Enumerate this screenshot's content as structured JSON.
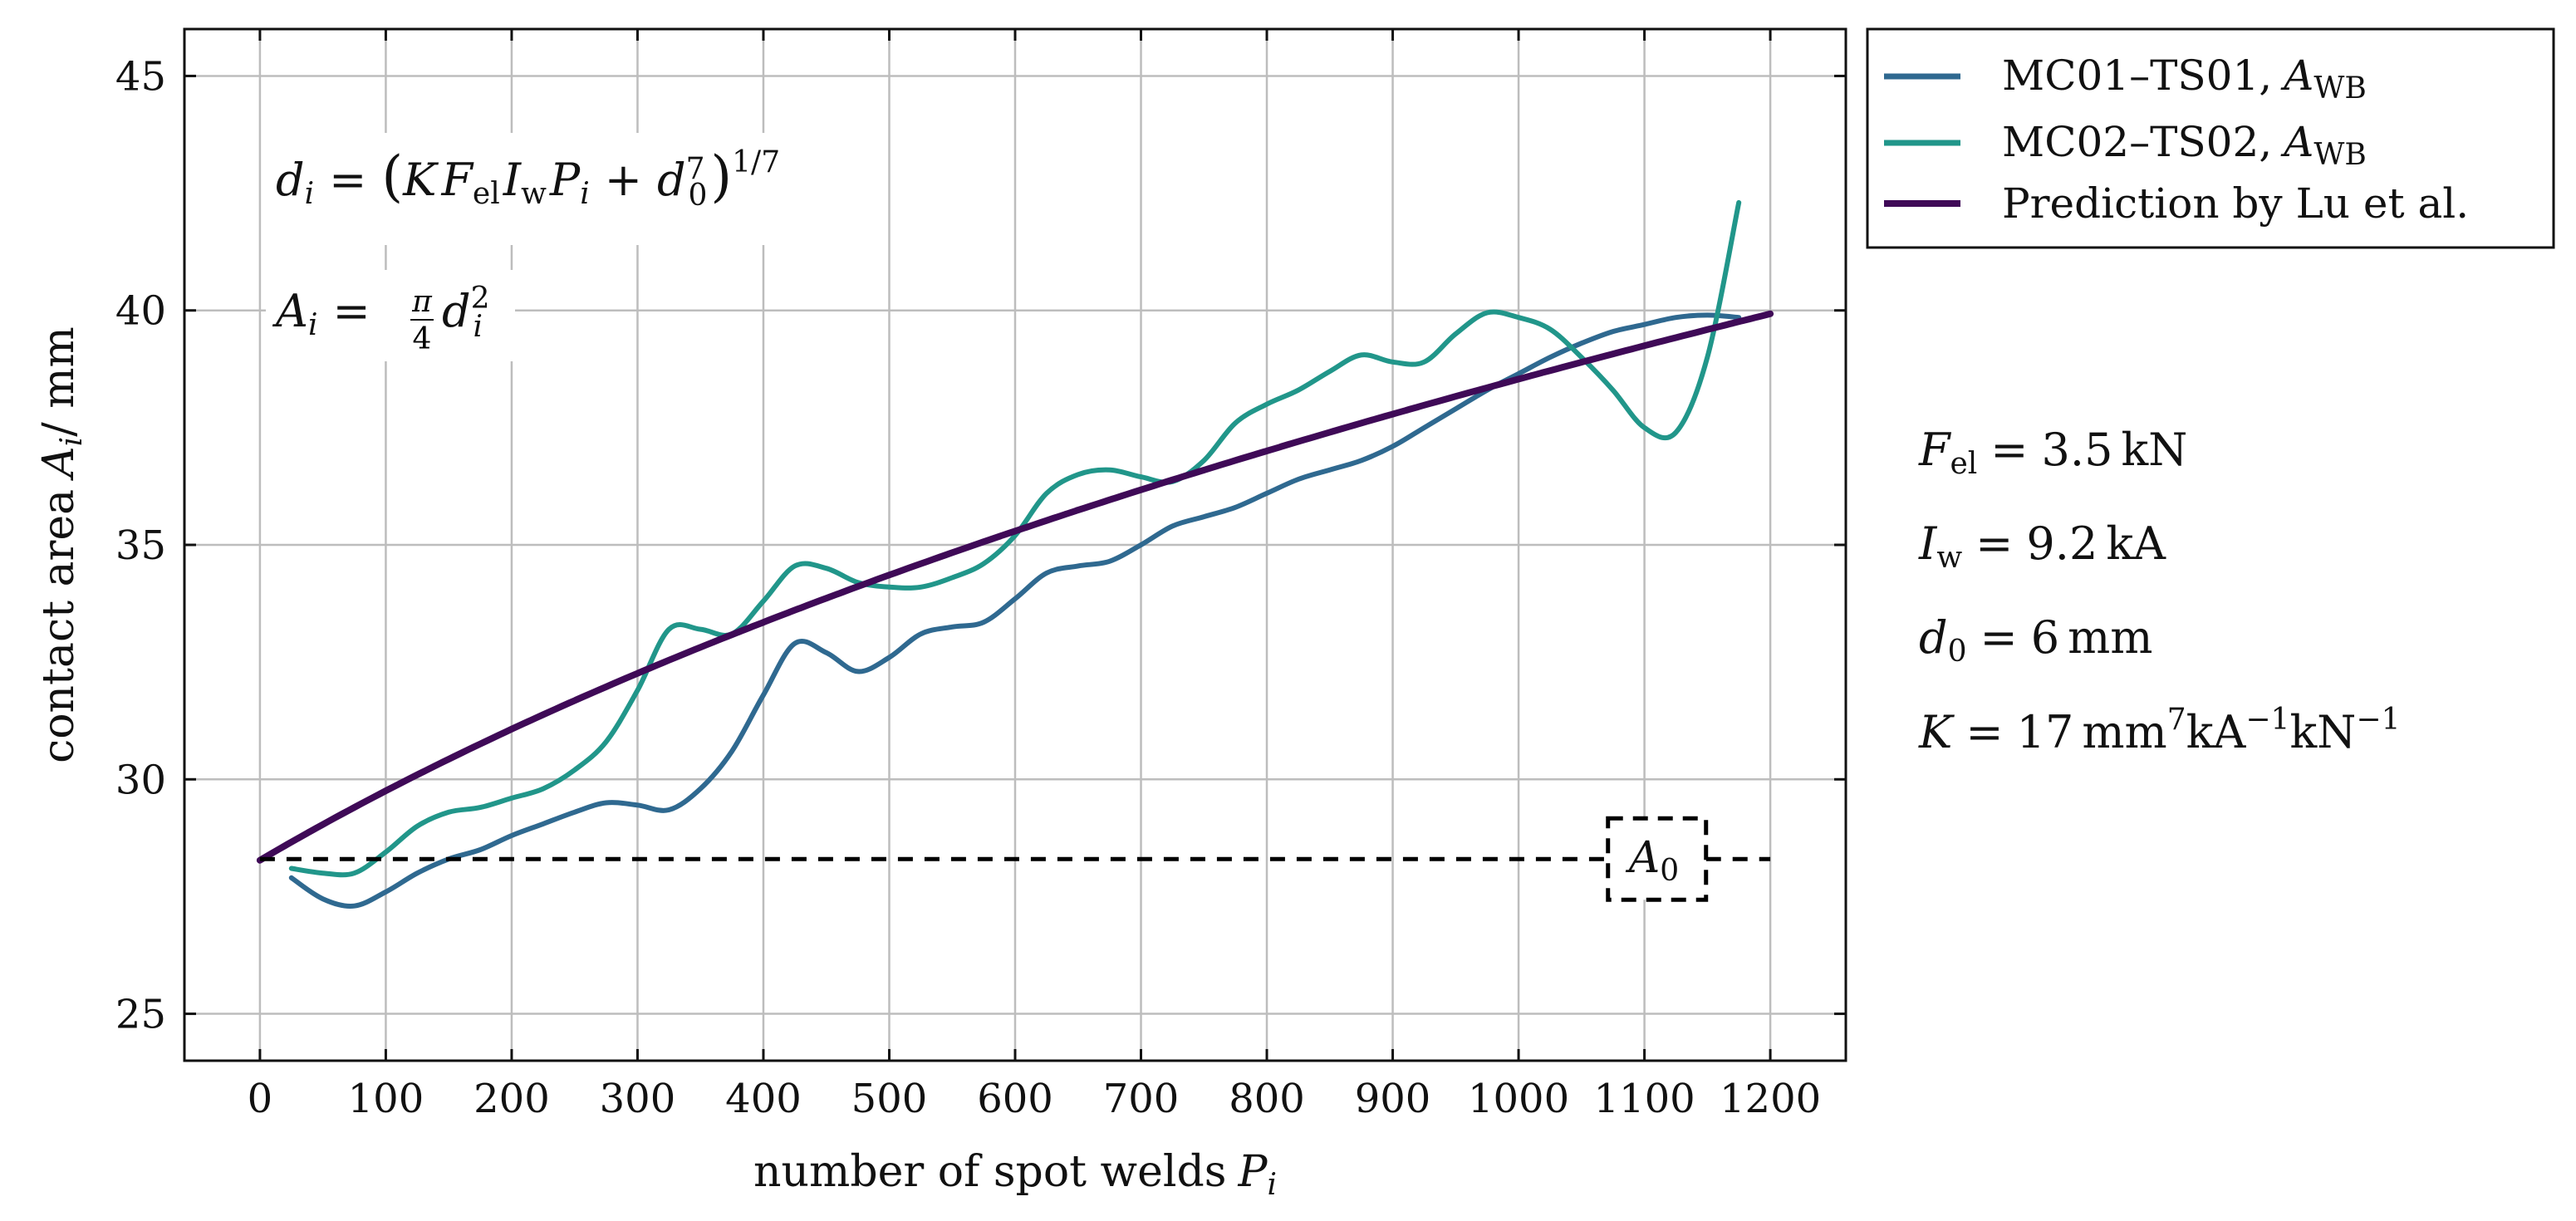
{
  "chart_data": {
    "type": "line",
    "x_label": "number of spot welds P_i",
    "y_label": "contact area A_i / mm",
    "xlim": [
      -60,
      1260
    ],
    "ylim": [
      24,
      46
    ],
    "x_ticks": [
      0,
      100,
      200,
      300,
      400,
      500,
      600,
      700,
      800,
      900,
      1000,
      1100,
      1200
    ],
    "y_ticks": [
      25,
      30,
      35,
      40,
      45
    ],
    "grid": true,
    "legend_position": "outside-top-right",
    "series": [
      {
        "name": "MC01–TS01, A_WB",
        "legend_base": "MC01–TS01,",
        "legend_var": "A",
        "legend_sub": "WB",
        "color": "#2f6990",
        "x": [
          25,
          50,
          75,
          100,
          125,
          150,
          175,
          200,
          225,
          250,
          275,
          300,
          325,
          350,
          375,
          400,
          425,
          450,
          475,
          500,
          525,
          550,
          575,
          600,
          625,
          650,
          675,
          700,
          725,
          750,
          775,
          800,
          825,
          850,
          875,
          900,
          925,
          950,
          975,
          1000,
          1025,
          1050,
          1075,
          1100,
          1125,
          1150,
          1175
        ],
        "y": [
          27.9,
          27.45,
          27.3,
          27.6,
          28.0,
          28.3,
          28.5,
          28.8,
          29.05,
          29.3,
          29.5,
          29.45,
          29.35,
          29.8,
          30.6,
          31.8,
          32.9,
          32.7,
          32.3,
          32.6,
          33.1,
          33.25,
          33.35,
          33.85,
          34.4,
          34.55,
          34.65,
          35.0,
          35.4,
          35.6,
          35.8,
          36.1,
          36.4,
          36.6,
          36.8,
          37.1,
          37.5,
          37.9,
          38.3,
          38.65,
          39.0,
          39.3,
          39.55,
          39.7,
          39.85,
          39.9,
          39.85
        ]
      },
      {
        "name": "MC02–TS02, A_WB",
        "legend_base": "MC02–TS02,",
        "legend_var": "A",
        "legend_sub": "WB",
        "color": "#21968a",
        "x": [
          25,
          50,
          75,
          100,
          125,
          150,
          175,
          200,
          225,
          250,
          275,
          300,
          325,
          350,
          375,
          400,
          425,
          450,
          475,
          500,
          525,
          550,
          575,
          600,
          625,
          650,
          675,
          700,
          725,
          750,
          775,
          800,
          825,
          850,
          875,
          900,
          925,
          950,
          975,
          1000,
          1025,
          1050,
          1075,
          1100,
          1125,
          1150,
          1175
        ],
        "y": [
          28.1,
          28.0,
          28.0,
          28.45,
          29.0,
          29.3,
          29.4,
          29.6,
          29.8,
          30.2,
          30.8,
          31.9,
          33.2,
          33.2,
          33.1,
          33.8,
          34.55,
          34.5,
          34.2,
          34.1,
          34.1,
          34.3,
          34.6,
          35.2,
          36.1,
          36.5,
          36.6,
          36.45,
          36.35,
          36.8,
          37.6,
          38.0,
          38.3,
          38.7,
          39.05,
          38.9,
          38.9,
          39.5,
          39.95,
          39.85,
          39.6,
          39.0,
          38.3,
          37.5,
          37.4,
          39.0,
          42.3
        ]
      },
      {
        "name": "Prediction by Lu et al.",
        "legend_label": "Prediction by Lu et al.",
        "color": "#3f0a57",
        "model": "lu",
        "params": {
          "K": 17,
          "F_el": 3.5,
          "I_w": 9.2,
          "d0": 6
        },
        "x_range": [
          0,
          1200
        ]
      }
    ],
    "reference_line": {
      "name": "A_0",
      "label_var": "A",
      "label_sub": "0",
      "y": 28.3,
      "x_range": [
        0,
        1200
      ],
      "label_at_x": 1110,
      "style": "dashed",
      "color": "#000000"
    },
    "annotations": {
      "formula_d": "d_i = (K F_el I_w P_i + d_0^7)^(1/7)",
      "formula_A": "A_i = (π/4) d_i^2",
      "param_F": "F_el = 3.5 kN",
      "param_I": "I_w = 9.2 kA",
      "param_d": "d_0 = 6 mm",
      "param_K": "K = 17 mm^7 kA^-1 kN^-1"
    }
  },
  "text": {
    "ylabel_main": "contact area",
    "ylabel_var": "A",
    "ylabel_sub": "i",
    "ylabel_unit": "/ mm",
    "xlabel_main": "number of spot welds",
    "xlabel_var": "P",
    "xlabel_sub": "i",
    "v_d": "d",
    "v_i": "i",
    "v_K": "K",
    "v_F": "F",
    "v_el": "el",
    "v_I": "I",
    "v_w": "w",
    "v_P": "P",
    "v_0": "0",
    "v_7": "7",
    "v_exp": "1/7",
    "v_A": "A",
    "v_2": "2",
    "v_pi": "π",
    "v_4": "4",
    "eq": "=",
    "plus": "+",
    "lparen": "(",
    "rparen": ")",
    "val_F": "3.5",
    "unit_kN": "kN",
    "val_I": "9.2",
    "unit_kA": "kA",
    "val_d": "6",
    "unit_mm": "mm",
    "val_K": "17",
    "unit_mm7": "mm",
    "unit_kA2": "kA",
    "unit_kN2": "kN",
    "exp_m1": "−1"
  }
}
